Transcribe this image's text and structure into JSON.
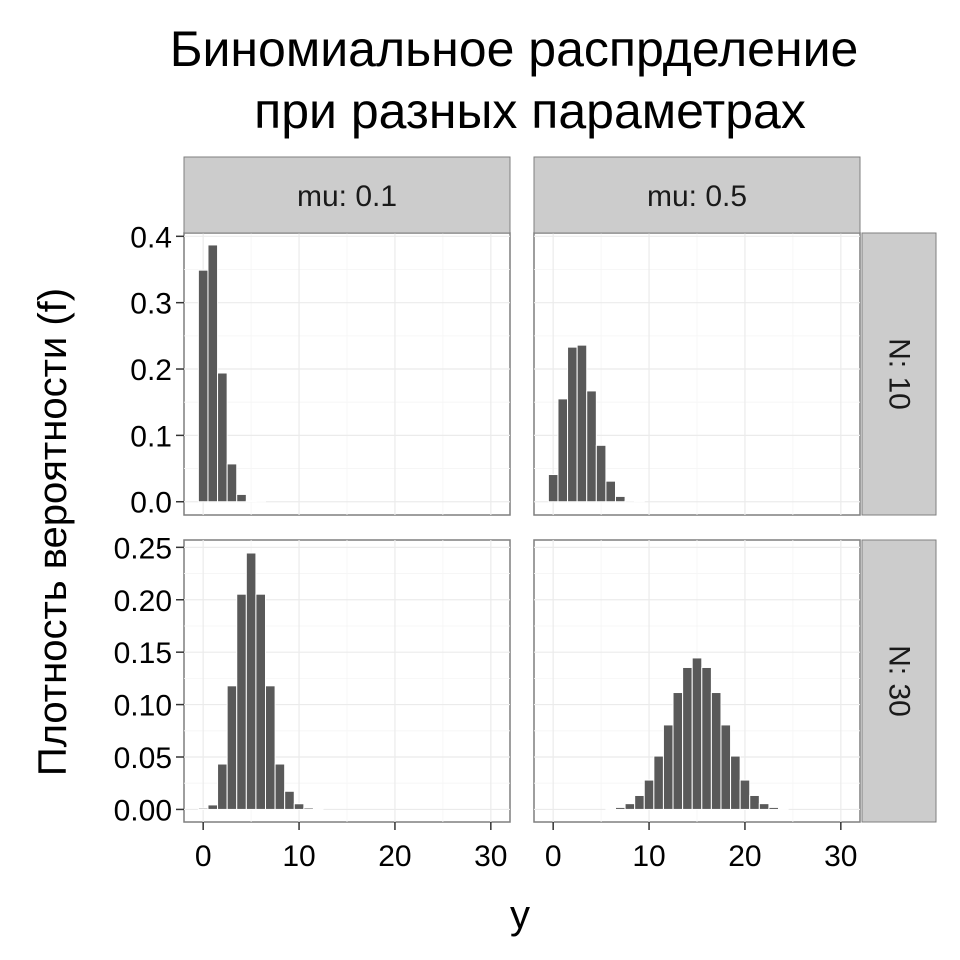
{
  "chart_data": {
    "type": "bar",
    "title_lines": [
      "Биномиальное распрделение",
      "при разных параметрах"
    ],
    "xlabel": "y",
    "ylabel": "Плотность вероятности (f)",
    "facet_cols": [
      "mu: 0.1",
      "mu: 0.5"
    ],
    "facet_rows": [
      "N: 10",
      "N: 30"
    ],
    "xlim": [
      -2,
      32
    ],
    "x_ticks": [
      0,
      10,
      20,
      30
    ],
    "x_tick_labels": [
      "0",
      "10",
      "20",
      "30"
    ],
    "rows": [
      {
        "ylim": [
          -0.02,
          0.405
        ],
        "y_ticks": [
          0.0,
          0.1,
          0.2,
          0.3,
          0.4
        ],
        "y_tick_labels": [
          "0.0",
          "0.1",
          "0.2",
          "0.3",
          "0.4"
        ]
      },
      {
        "ylim": [
          -0.012,
          0.257
        ],
        "y_ticks": [
          0.0,
          0.05,
          0.1,
          0.15,
          0.2,
          0.25
        ],
        "y_tick_labels": [
          "0.00",
          "0.05",
          "0.10",
          "0.15",
          "0.20",
          "0.25"
        ]
      }
    ],
    "panels": [
      {
        "row": 0,
        "col": 0,
        "x": [
          0,
          1,
          2,
          3,
          4,
          5,
          6,
          7,
          8,
          9,
          10
        ],
        "values": [
          0.349,
          0.387,
          0.194,
          0.057,
          0.011,
          0.0015,
          0.0001,
          0,
          0,
          0,
          0
        ]
      },
      {
        "row": 0,
        "col": 1,
        "x": [
          0,
          1,
          2,
          3,
          4,
          5,
          6,
          7,
          8,
          9,
          10
        ],
        "values": [
          0.041,
          0.155,
          0.233,
          0.236,
          0.167,
          0.085,
          0.031,
          0.008,
          0.0016,
          0.0002,
          0
        ]
      },
      {
        "row": 1,
        "col": 0,
        "x": [
          0,
          1,
          2,
          3,
          4,
          5,
          6,
          7,
          8,
          9,
          10,
          11,
          12
        ],
        "values": [
          0.0012,
          0.0043,
          0.0433,
          0.1179,
          0.2053,
          0.2446,
          0.2053,
          0.1179,
          0.0433,
          0.0173,
          0.0054,
          0.0014,
          0.0003
        ]
      },
      {
        "row": 1,
        "col": 1,
        "x": [
          6,
          7,
          8,
          9,
          10,
          11,
          12,
          13,
          14,
          15,
          16,
          17,
          18,
          19,
          20,
          21,
          22,
          23,
          24
        ],
        "values": [
          0.0006,
          0.0019,
          0.0055,
          0.0133,
          0.028,
          0.0509,
          0.0806,
          0.1115,
          0.1354,
          0.1445,
          0.1354,
          0.1115,
          0.0806,
          0.0509,
          0.028,
          0.0133,
          0.0055,
          0.0019,
          0.0006
        ]
      }
    ]
  }
}
